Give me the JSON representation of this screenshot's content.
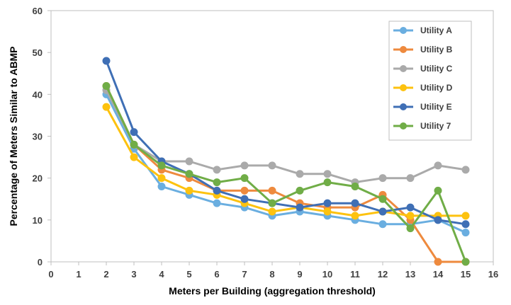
{
  "chart_data": {
    "type": "line",
    "title": "",
    "xlabel": "Meters per Building (aggregation threshold)",
    "ylabel": "Percentage of Meters Similar to ABMP",
    "xlim": [
      0,
      16
    ],
    "ylim": [
      0,
      60
    ],
    "x_ticks": [
      "0",
      "1",
      "2",
      "3",
      "4",
      "5",
      "6",
      "7",
      "8",
      "9",
      "10",
      "11",
      "12",
      "13",
      "14",
      "15",
      "16"
    ],
    "y_ticks": [
      "0",
      "10",
      "20",
      "30",
      "40",
      "50",
      "60"
    ],
    "grid": "none",
    "legend_position": "top-right",
    "x": [
      2,
      3,
      4,
      5,
      6,
      7,
      8,
      9,
      10,
      11,
      12,
      13,
      14,
      15
    ],
    "series": [
      {
        "name": "Utility A",
        "color": "#6aaee0",
        "values": [
          40,
          27,
          18,
          16,
          14,
          13,
          11,
          12,
          11,
          10,
          9,
          9,
          10,
          7
        ]
      },
      {
        "name": "Utility B",
        "color": "#ee8a3e",
        "values": [
          42,
          28,
          22,
          20,
          17,
          17,
          17,
          14,
          13,
          13,
          16,
          10,
          0,
          0
        ]
      },
      {
        "name": "Utility C",
        "color": "#aaaaaa",
        "values": [
          41,
          28,
          24,
          24,
          22,
          23,
          23,
          21,
          21,
          19,
          20,
          20,
          23,
          22
        ]
      },
      {
        "name": "Utility D",
        "color": "#fdc20f",
        "values": [
          37,
          25,
          20,
          17,
          16,
          14,
          12,
          13,
          12,
          11,
          12,
          11,
          11,
          11
        ]
      },
      {
        "name": "Utility E",
        "color": "#3f6fb5",
        "values": [
          48,
          31,
          24,
          21,
          17,
          15,
          14,
          13,
          14,
          14,
          12,
          13,
          10,
          9
        ]
      },
      {
        "name": "Utility 7",
        "color": "#70ad47",
        "values": [
          42,
          28,
          23,
          21,
          19,
          20,
          14,
          17,
          19,
          18,
          15,
          8,
          17,
          0
        ]
      }
    ]
  }
}
